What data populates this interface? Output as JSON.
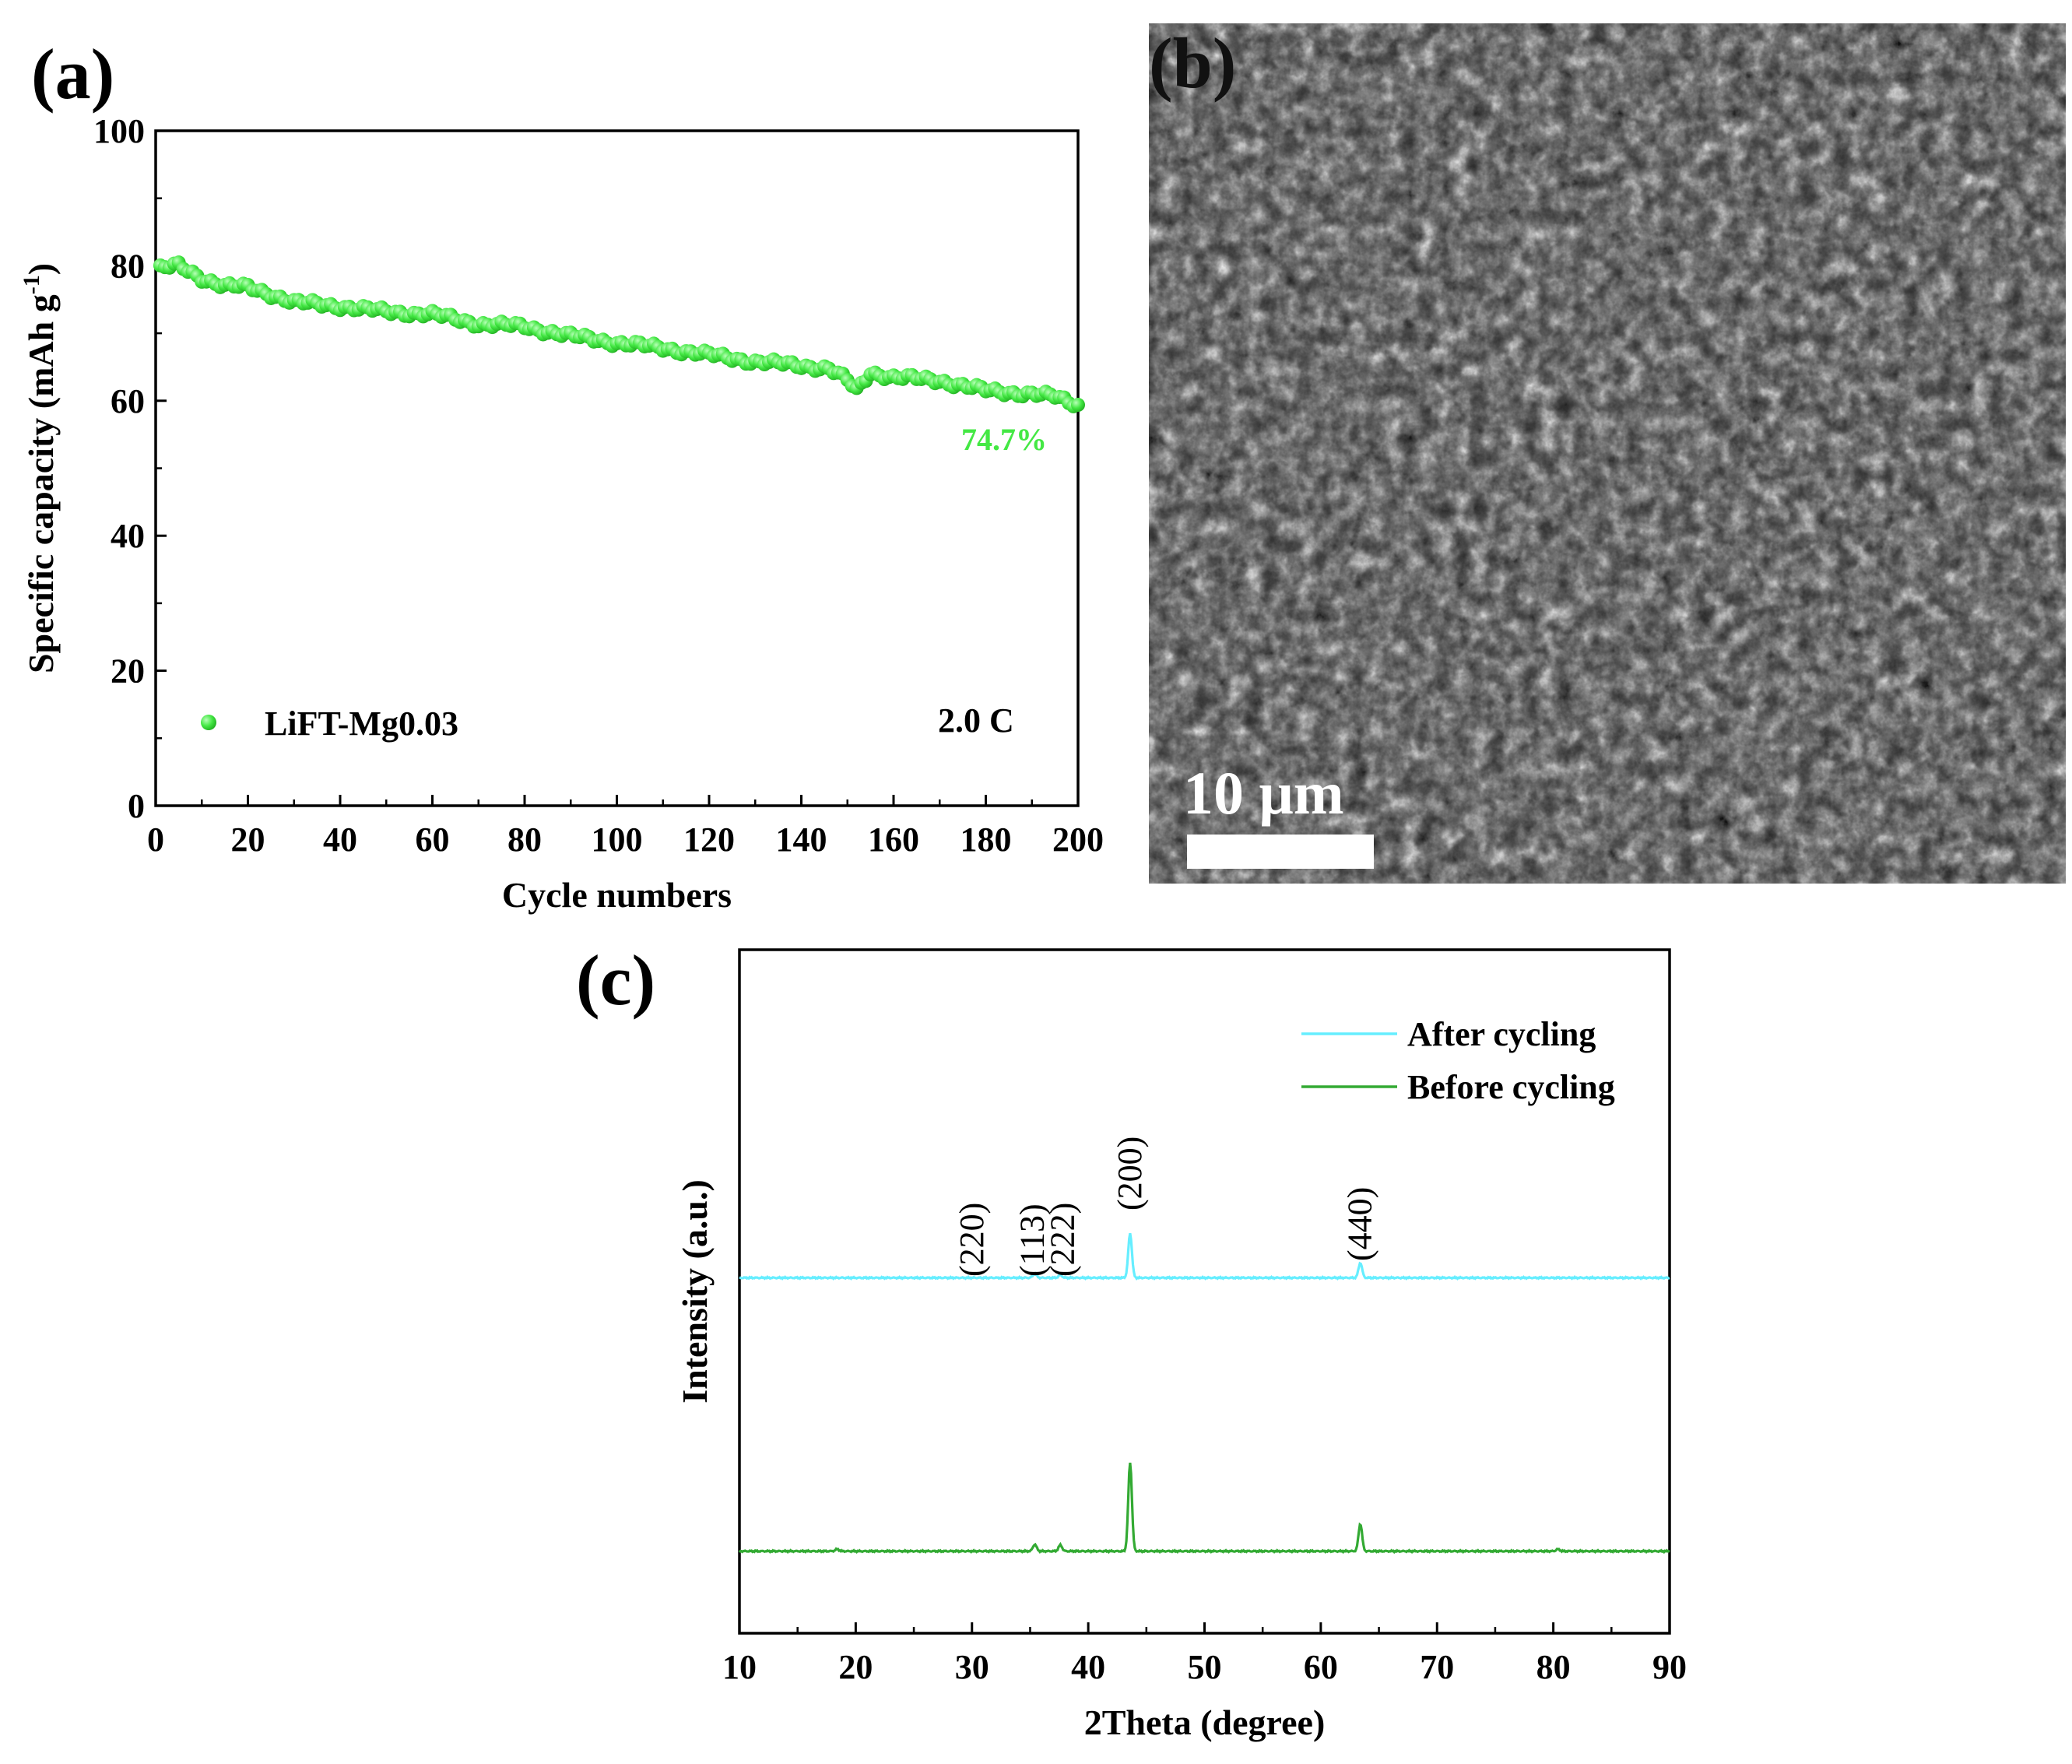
{
  "panels": {
    "a": "(a)",
    "b": "(b)",
    "c": "(c)"
  },
  "sem": {
    "scale_bar_label": "10 μm",
    "description_colors": {
      "dark": "#2a2a2a",
      "light": "#bdbdbd"
    }
  },
  "chart_data": [
    {
      "panel": "a",
      "type": "scatter",
      "xlabel": "Cycle numbers",
      "ylabel_main": "Specific capacity (mAh g",
      "ylabel_sup": "-1",
      "ylabel_close": ")",
      "xlim": [
        0,
        200
      ],
      "ylim": [
        0,
        100
      ],
      "xticks": [
        "0",
        "20",
        "40",
        "60",
        "80",
        "100",
        "120",
        "140",
        "160",
        "180",
        "200"
      ],
      "yticks": [
        "0",
        "20",
        "40",
        "60",
        "80",
        "100"
      ],
      "legend": {
        "label": "LiFT-Mg0.03",
        "position": "bottom-left"
      },
      "rate_label": "2.0 C",
      "retention_label": "74.7%",
      "color": "#44e844",
      "series": [
        {
          "name": "LiFT-Mg0.03",
          "keypoints_x": [
            1,
            5,
            10,
            15,
            20,
            25,
            30,
            40,
            50,
            60,
            70,
            80,
            90,
            100,
            110,
            120,
            130,
            140,
            146,
            150,
            152,
            155,
            160,
            170,
            180,
            190,
            195,
            200
          ],
          "keypoints_y": [
            79.6,
            80.0,
            78.2,
            77.0,
            76.8,
            75.8,
            74.6,
            74.0,
            73.2,
            72.8,
            71.4,
            71.0,
            69.6,
            68.6,
            67.8,
            66.8,
            65.8,
            65.2,
            64.8,
            63.0,
            61.5,
            64.2,
            63.5,
            63.0,
            61.5,
            61.0,
            60.6,
            59.4
          ]
        }
      ]
    },
    {
      "panel": "c",
      "type": "line",
      "xlabel": "2Theta (degree)",
      "ylabel": "Intensity (a.u.)",
      "xlim": [
        10,
        90
      ],
      "xticks": [
        "10",
        "20",
        "30",
        "40",
        "50",
        "60",
        "70",
        "80",
        "90"
      ],
      "legend": {
        "position": "top-right"
      },
      "peak_labels": [
        {
          "text": "(220)",
          "x": 30.0
        },
        {
          "text": "(113)",
          "x": 35.2
        },
        {
          "text": "(222)",
          "x": 37.8
        },
        {
          "text": "(200)",
          "x": 43.6
        },
        {
          "text": "(440)",
          "x": 63.4
        }
      ],
      "series": [
        {
          "name": "After cycling",
          "color": "#66eeff",
          "baseline": 0.52,
          "peaks": [
            [
              43.6,
              0.065
            ],
            [
              63.4,
              0.022
            ],
            [
              35.4,
              0.006
            ],
            [
              37.6,
              0.004
            ]
          ]
        },
        {
          "name": "Before cycling",
          "color": "#33aa33",
          "baseline": 0.12,
          "peaks": [
            [
              43.6,
              0.13
            ],
            [
              63.4,
              0.04
            ],
            [
              35.4,
              0.01
            ],
            [
              37.6,
              0.009
            ],
            [
              18.4,
              0.003
            ],
            [
              80.4,
              0.003
            ]
          ]
        }
      ]
    }
  ]
}
